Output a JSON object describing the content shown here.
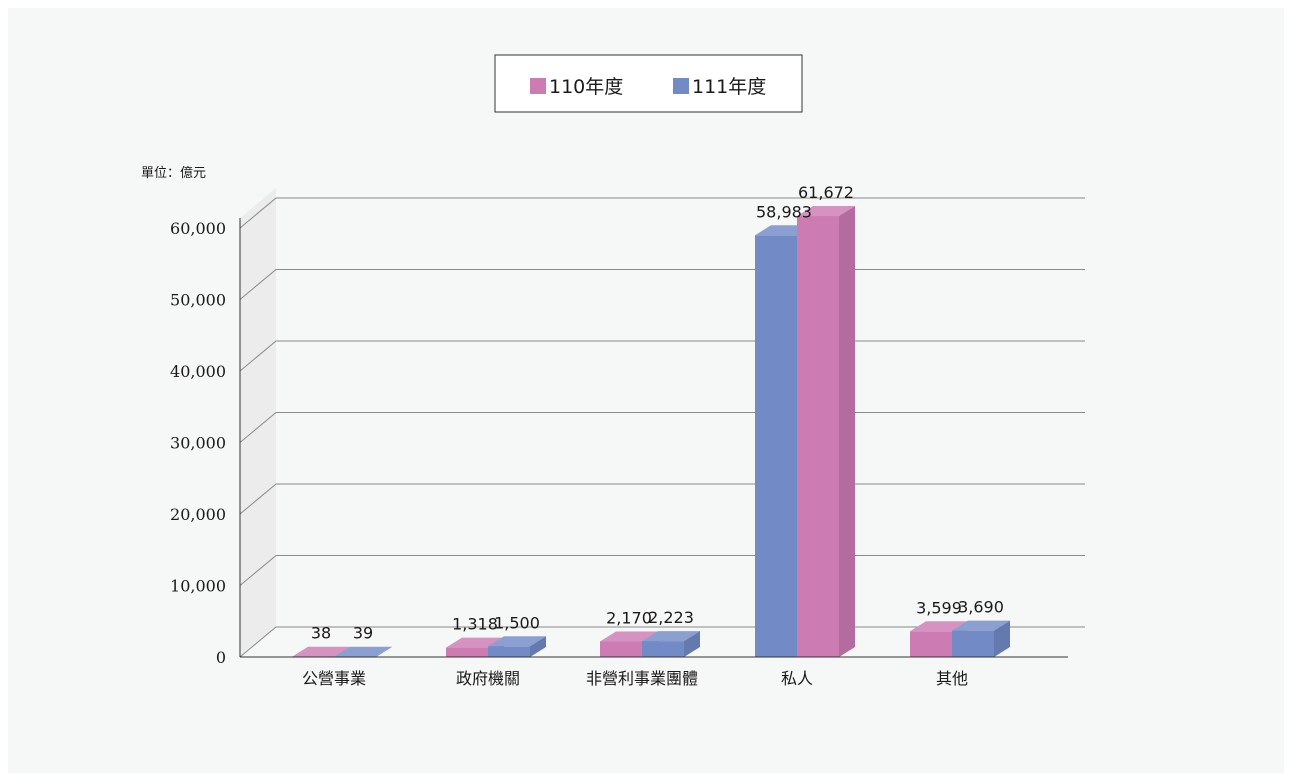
{
  "chart_data": {
    "type": "bar",
    "title": "",
    "unit_label": "單位：億元",
    "categories": [
      "公營事業",
      "政府機關",
      "非營利事業團體",
      "私人",
      "其他"
    ],
    "series": [
      {
        "name": "110年度",
        "color": "#cc7bb3",
        "values": [
          38,
          1318,
          2170,
          61672,
          3599
        ]
      },
      {
        "name": "111年度",
        "color": "#728bc6",
        "values": [
          39,
          1500,
          2223,
          58983,
          3690
        ]
      }
    ],
    "ylim": [
      0,
      60000
    ],
    "yticks": [
      0,
      10000,
      20000,
      30000,
      40000,
      50000,
      60000
    ],
    "ytick_labels": [
      "0",
      "10,000",
      "20,000",
      "30,000",
      "40,000",
      "50,000",
      "60,000"
    ],
    "data_labels": [
      [
        "38",
        "1,318",
        "2,170",
        "61,672",
        "3,599"
      ],
      [
        "39",
        "1,500",
        "2,223",
        "58,983",
        "3,690"
      ]
    ],
    "grid": true,
    "legend_position": "top-center",
    "style": "3d-bars"
  }
}
